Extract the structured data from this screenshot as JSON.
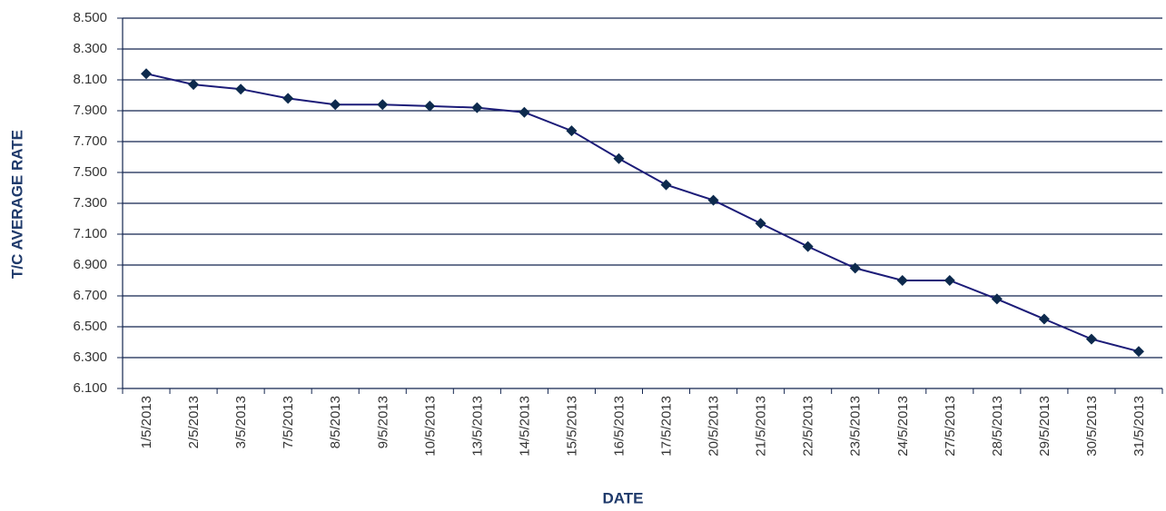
{
  "chart_data": {
    "type": "line",
    "x_label": "DATE",
    "y_label": "T/C AVERAGE RATE",
    "categories": [
      "1/5/2013",
      "2/5/2013",
      "3/5/2013",
      "7/5/2013",
      "8/5/2013",
      "9/5/2013",
      "10/5/2013",
      "13/5/2013",
      "14/5/2013",
      "15/5/2013",
      "16/5/2013",
      "17/5/2013",
      "20/5/2013",
      "21/5/2013",
      "22/5/2013",
      "23/5/2013",
      "24/5/2013",
      "27/5/2013",
      "28/5/2013",
      "29/5/2013",
      "30/5/2013",
      "31/5/2013"
    ],
    "values": [
      8.14,
      8.07,
      8.04,
      7.98,
      7.94,
      7.94,
      7.93,
      7.92,
      7.89,
      7.77,
      7.59,
      7.42,
      7.32,
      7.17,
      7.02,
      6.88,
      6.8,
      6.8,
      6.68,
      6.55,
      6.42,
      6.34
    ],
    "color": "#1c1c78",
    "marker_color": "#0d2a4d",
    "grid_color": "#13254f",
    "ylim": [
      6.1,
      8.5
    ],
    "yticks": [
      {
        "value": 6.1,
        "label": "6.100"
      },
      {
        "value": 6.3,
        "label": "6.300"
      },
      {
        "value": 6.5,
        "label": "6.500"
      },
      {
        "value": 6.7,
        "label": "6.700"
      },
      {
        "value": 6.9,
        "label": "6.900"
      },
      {
        "value": 7.1,
        "label": "7.100"
      },
      {
        "value": 7.3,
        "label": "7.300"
      },
      {
        "value": 7.5,
        "label": "7.500"
      },
      {
        "value": 7.7,
        "label": "7.700"
      },
      {
        "value": 7.9,
        "label": "7.900"
      },
      {
        "value": 8.1,
        "label": "8.100"
      },
      {
        "value": 8.3,
        "label": "8.300"
      },
      {
        "value": 8.5,
        "label": "8.500"
      }
    ],
    "grid": true
  }
}
